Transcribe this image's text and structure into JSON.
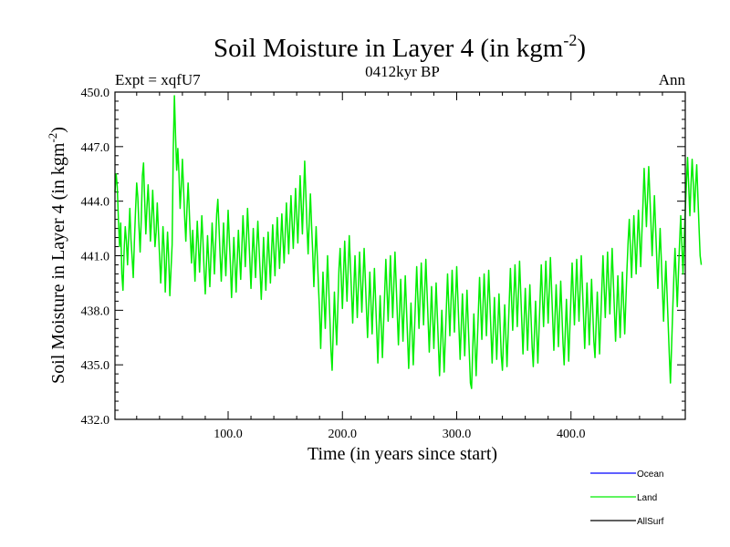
{
  "chart_data": {
    "type": "line",
    "title_main": "Soil Moisture in Layer 4 (in kgm",
    "title_sup": "-2",
    "title_close": ")",
    "subtitle": "0412kyr BP",
    "left_label": "Expt = xqfU7",
    "right_label": "Ann",
    "xlabel": "Time (in years since start)",
    "ylabel_main": "Soil Moisture in Layer 4 (in kgm",
    "ylabel_sup": "-2",
    "ylabel_close": ")",
    "xlim": [
      1,
      500
    ],
    "ylim": [
      432.0,
      450.0
    ],
    "xticks": [
      100,
      200,
      300,
      400
    ],
    "xtick_labels": [
      "100.0",
      "200.0",
      "300.0",
      "400.0"
    ],
    "yticks": [
      432,
      435,
      438,
      441,
      444,
      447,
      450
    ],
    "ytick_labels": [
      "432.0",
      "435.0",
      "438.0",
      "441.0",
      "444.0",
      "447.0",
      "450.0"
    ],
    "legend": [
      {
        "name": "Ocean",
        "color": "#0000ff"
      },
      {
        "name": "Land",
        "color": "#00ee00"
      },
      {
        "name": "AllSurf",
        "color": "#000000"
      }
    ],
    "series": [
      {
        "name": "Land",
        "color": "#00ee00",
        "x_start": 1,
        "x_step": 1,
        "values": [
          444.5,
          445.5,
          444.8,
          443.0,
          441.5,
          442.8,
          440.0,
          439.1,
          441.3,
          442.6,
          441.8,
          440.5,
          442.1,
          443.6,
          441.9,
          440.9,
          439.8,
          441.8,
          443.5,
          445.0,
          444.2,
          442.6,
          441.2,
          443.0,
          445.4,
          446.1,
          444.0,
          442.2,
          443.7,
          444.9,
          443.5,
          441.8,
          442.9,
          444.6,
          443.1,
          441.5,
          442.3,
          443.9,
          442.4,
          441.0,
          439.5,
          440.8,
          442.6,
          441.4,
          439.0,
          440.7,
          442.3,
          440.9,
          438.8,
          440.2,
          441.6,
          446.8,
          449.8,
          447.6,
          445.7,
          446.9,
          445.5,
          443.6,
          444.8,
          446.3,
          444.7,
          443.1,
          441.8,
          443.6,
          445.0,
          443.5,
          441.9,
          440.6,
          442.4,
          441.1,
          439.6,
          441.3,
          442.9,
          441.6,
          440.1,
          441.7,
          443.2,
          441.8,
          440.2,
          438.9,
          440.5,
          442.1,
          440.7,
          439.3,
          441.0,
          442.8,
          441.5,
          440.0,
          441.6,
          443.3,
          444.1,
          442.6,
          441.0,
          439.6,
          441.2,
          442.8,
          441.2,
          439.9,
          441.7,
          443.5,
          442.0,
          440.5,
          438.7,
          440.3,
          442.0,
          440.6,
          439.0,
          440.8,
          442.4,
          441.0,
          439.7,
          441.4,
          443.2,
          441.9,
          440.4,
          441.9,
          443.6,
          442.2,
          440.7,
          439.2,
          440.9,
          442.5,
          441.1,
          439.8,
          441.5,
          442.9,
          441.5,
          440.1,
          438.6,
          440.2,
          442.0,
          440.5,
          439.1,
          440.8,
          442.3,
          440.9,
          439.5,
          441.2,
          442.7,
          441.3,
          439.9,
          441.6,
          443.1,
          441.7,
          440.3,
          441.8,
          443.3,
          441.9,
          440.6,
          442.3,
          443.9,
          442.5,
          441.1,
          442.8,
          444.3,
          442.8,
          441.4,
          443.0,
          444.7,
          443.2,
          441.7,
          443.5,
          445.4,
          443.8,
          442.2,
          444.2,
          446.2,
          444.4,
          442.6,
          441.1,
          442.9,
          444.4,
          442.7,
          441.2,
          439.3,
          441.0,
          442.6,
          441.0,
          439.4,
          437.9,
          435.9,
          438.0,
          440.1,
          438.5,
          437.0,
          439.1,
          441.0,
          439.3,
          437.6,
          435.8,
          434.7,
          436.9,
          439.0,
          437.4,
          436.1,
          438.2,
          440.3,
          441.4,
          439.7,
          438.1,
          440.0,
          441.8,
          440.1,
          438.5,
          440.3,
          442.1,
          440.5,
          438.9,
          437.3,
          439.2,
          441.0,
          439.3,
          437.6,
          439.4,
          441.2,
          439.6,
          437.9,
          439.7,
          441.4,
          439.8,
          438.1,
          436.5,
          438.3,
          440.1,
          438.4,
          436.7,
          438.5,
          440.3,
          438.6,
          436.9,
          435.1,
          437.0,
          438.8,
          437.1,
          435.4,
          437.2,
          439.0,
          440.8,
          439.1,
          437.4,
          439.2,
          441.0,
          439.3,
          437.6,
          439.4,
          441.2,
          439.5,
          437.8,
          436.1,
          437.9,
          439.7,
          438.0,
          436.3,
          438.1,
          439.9,
          438.2,
          436.5,
          434.8,
          436.6,
          438.4,
          436.7,
          435.0,
          436.8,
          438.6,
          440.4,
          438.7,
          437.0,
          438.8,
          440.6,
          438.9,
          437.2,
          439.0,
          440.8,
          439.1,
          437.4,
          435.7,
          437.5,
          439.3,
          437.6,
          435.9,
          437.7,
          439.5,
          437.8,
          436.1,
          434.4,
          436.2,
          438.0,
          436.3,
          434.6,
          436.4,
          438.2,
          440.0,
          438.3,
          436.6,
          438.4,
          440.2,
          438.5,
          436.8,
          438.6,
          440.4,
          438.7,
          437.0,
          435.3,
          437.1,
          438.9,
          437.2,
          435.5,
          437.3,
          439.1,
          437.4,
          435.7,
          434.0,
          433.7,
          435.8,
          437.8,
          436.1,
          434.4,
          436.2,
          438.0,
          439.8,
          438.1,
          436.4,
          438.2,
          440.0,
          438.3,
          436.6,
          438.4,
          440.2,
          438.5,
          436.8,
          435.1,
          436.9,
          438.7,
          437.0,
          435.3,
          437.1,
          438.9,
          437.2,
          435.5,
          434.7,
          436.5,
          438.3,
          436.6,
          434.9,
          436.7,
          438.5,
          440.3,
          438.6,
          436.9,
          438.7,
          440.5,
          438.8,
          437.1,
          438.9,
          440.7,
          439.0,
          437.3,
          435.6,
          437.4,
          439.2,
          437.5,
          435.8,
          437.6,
          439.4,
          437.7,
          436.0,
          434.9,
          436.7,
          438.5,
          436.8,
          435.1,
          436.9,
          438.7,
          440.5,
          438.8,
          437.1,
          438.9,
          440.7,
          439.0,
          437.3,
          439.1,
          440.9,
          439.2,
          437.5,
          435.8,
          437.6,
          439.4,
          437.7,
          436.0,
          437.8,
          439.6,
          437.9,
          436.2,
          435.0,
          436.8,
          438.6,
          436.9,
          435.2,
          437.0,
          438.8,
          440.6,
          438.9,
          437.2,
          439.0,
          440.8,
          439.1,
          437.4,
          439.2,
          441.0,
          439.3,
          437.6,
          435.9,
          437.7,
          439.5,
          437.8,
          436.1,
          437.9,
          439.7,
          438.0,
          436.3,
          435.4,
          437.2,
          439.0,
          437.3,
          435.6,
          437.4,
          439.2,
          441.0,
          439.3,
          437.6,
          439.4,
          441.2,
          439.5,
          437.8,
          439.6,
          441.4,
          439.7,
          438.0,
          436.3,
          438.1,
          439.9,
          438.2,
          436.5,
          438.3,
          440.1,
          438.4,
          436.7,
          438.5,
          440.3,
          441.8,
          443.0,
          441.4,
          439.8,
          441.5,
          443.2,
          441.6,
          440.0,
          441.8,
          443.5,
          442.0,
          440.4,
          442.2,
          443.9,
          445.8,
          444.2,
          442.6,
          444.3,
          445.9,
          444.3,
          442.7,
          441.0,
          442.7,
          444.3,
          442.6,
          440.9,
          439.2,
          440.9,
          442.5,
          440.8,
          439.1,
          437.4,
          439.1,
          440.7,
          439.0,
          437.3,
          435.6,
          434.0,
          436.0,
          438.0,
          439.8,
          441.4,
          439.8,
          438.2,
          440.0,
          441.7,
          443.2,
          441.6,
          440.0,
          441.8,
          443.5,
          445.0,
          446.4,
          444.8,
          443.2,
          444.9,
          446.3,
          445.0,
          443.4,
          444.8,
          446.0,
          444.3,
          442.6,
          441.0,
          440.5
        ]
      }
    ]
  }
}
